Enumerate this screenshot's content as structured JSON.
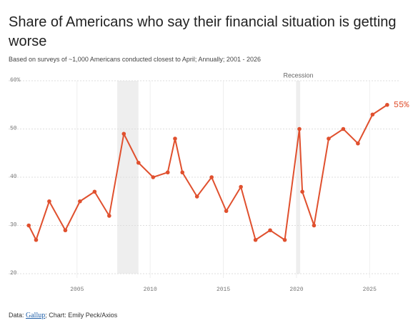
{
  "chart_data": {
    "type": "line",
    "title": "Share of Americans who say their financial situation is getting worse",
    "subtitle": "Based on surveys of ~1,000 Americans conducted closest to April; Annually; 2001 - 2026",
    "source_prefix": "Data: ",
    "source_link": "Gallup",
    "source_suffix": "; Chart: Emily Peck/Axios",
    "annotation": "Recession",
    "recessions": [
      [
        2007.75,
        2009.2
      ],
      [
        2020.0,
        2020.25
      ]
    ],
    "x": [
      2001.7,
      2002.2,
      2003.1,
      2004.2,
      2005.2,
      2006.2,
      2007.2,
      2008.2,
      2009.2,
      2010.2,
      2011.2,
      2011.7,
      2012.2,
      2013.2,
      2014.2,
      2015.2,
      2016.2,
      2017.2,
      2018.2,
      2019.2,
      2020.2,
      2020.4,
      2021.2,
      2022.2,
      2023.2,
      2024.2,
      2025.2,
      2026.2
    ],
    "series": [
      {
        "name": "Getting worse",
        "color": "#e0502e",
        "values": [
          30,
          27,
          35,
          29,
          35,
          37,
          32,
          49,
          43,
          40,
          41,
          48,
          41,
          36,
          40,
          33,
          38,
          27,
          29,
          27,
          50,
          37,
          30,
          48,
          50,
          47,
          53,
          55
        ],
        "value_labels": [
          null,
          null,
          null,
          null,
          null,
          null,
          null,
          null,
          null,
          null,
          null,
          null,
          null,
          null,
          null,
          null,
          null,
          null,
          null,
          null,
          null,
          null,
          null,
          null,
          null,
          null,
          null,
          "55%"
        ]
      }
    ],
    "xlim": [
      2001.2,
      2026.5
    ],
    "xticks": [
      2005,
      2010,
      2015,
      2020,
      2025
    ],
    "ylim": [
      20,
      60
    ],
    "yticks": [
      20,
      30,
      40,
      50,
      {
        "value": 60,
        "label": "60%"
      }
    ],
    "grid": true
  }
}
